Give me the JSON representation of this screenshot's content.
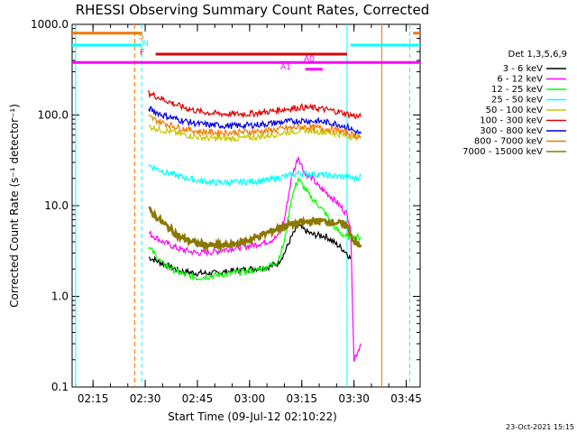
{
  "chart_data": {
    "type": "line",
    "title": "RHESSI Observing Summary Count Rates, Corrected",
    "xlabel": "Start Time (09-Jul-12 02:10:22)",
    "ylabel": "Corrected Count Rate (s⁻¹ detector⁻¹)",
    "yscale": "log",
    "ylim": [
      0.1,
      1000
    ],
    "xlim": [
      "02:09",
      "03:49"
    ],
    "x_ticks": [
      "02:15",
      "02:30",
      "02:45",
      "03:00",
      "03:15",
      "03:30",
      "03:45"
    ],
    "y_ticks": [
      "0.1",
      "1.0",
      "10.0",
      "100.0",
      "1000.0"
    ],
    "legend_title": "Det 1,3,5,6,9",
    "legend_position": "right",
    "timestamp": "23-Oct-2021 15:15",
    "flag_labels": {
      "S": "S",
      "N": "N",
      "F": "F",
      "A0": "A0",
      "A1": "A1"
    },
    "flags": [
      {
        "label": "S",
        "color": "#f07800",
        "level": 800,
        "segments": [
          [
            "02:09",
            "02:29"
          ],
          [
            "03:47",
            "03:49"
          ]
        ]
      },
      {
        "label": "N",
        "color": "#00ffff",
        "level": 590,
        "segments": [
          [
            "02:09",
            "02:29"
          ],
          [
            "03:29",
            "03:49"
          ]
        ]
      },
      {
        "label": "F",
        "color": "#e00000",
        "level": 470,
        "segments": [
          [
            "02:33",
            "03:28"
          ]
        ]
      },
      {
        "label": "A0",
        "color": "#ff00ff",
        "level": 380,
        "segments": [
          [
            "02:09",
            "03:49"
          ]
        ]
      },
      {
        "label": "A1",
        "color": "#ff00ff",
        "level": 320,
        "segments": [
          [
            "03:16",
            "03:21"
          ]
        ]
      }
    ],
    "vertical_markers": [
      {
        "time": "02:10",
        "color": "#00ffff",
        "style": "solid"
      },
      {
        "time": "02:27",
        "color": "#f07800",
        "style": "dashed"
      },
      {
        "time": "02:29",
        "color": "#00ffff",
        "style": "dashed"
      },
      {
        "time": "03:28",
        "color": "#00ffff",
        "style": "solid"
      },
      {
        "time": "03:38",
        "color": "#f07800",
        "style": "solid"
      },
      {
        "time": "03:46",
        "color": "#00ffff",
        "style": "dashed"
      }
    ],
    "series": [
      {
        "name": "3 - 6 keV",
        "color": "#000000",
        "x": [
          "02:31",
          "02:35",
          "02:40",
          "02:45",
          "02:50",
          "02:55",
          "03:00",
          "03:05",
          "03:08",
          "03:10",
          "03:12",
          "03:14",
          "03:16",
          "03:18",
          "03:20",
          "03:22",
          "03:24",
          "03:26",
          "03:28",
          "03:29"
        ],
        "y": [
          2.7,
          2.3,
          1.9,
          1.8,
          1.8,
          1.9,
          2.0,
          2.1,
          2.3,
          3.0,
          4.5,
          6.0,
          5.3,
          4.8,
          4.7,
          4.6,
          4.0,
          3.5,
          3.0,
          2.6
        ]
      },
      {
        "name": "6 - 12 keV",
        "color": "#ff00ff",
        "x": [
          "02:31",
          "02:35",
          "02:40",
          "02:45",
          "02:50",
          "02:55",
          "03:00",
          "03:05",
          "03:08",
          "03:10",
          "03:12",
          "03:14",
          "03:16",
          "03:18",
          "03:20",
          "03:22",
          "03:24",
          "03:26",
          "03:28",
          "03:29",
          "03:30",
          "03:32"
        ],
        "y": [
          5.0,
          4.0,
          3.3,
          3.0,
          3.1,
          3.4,
          3.6,
          4.0,
          4.5,
          7.0,
          20,
          35,
          22,
          20,
          16,
          14,
          12,
          10,
          8.0,
          6.0,
          0.2,
          0.3
        ]
      },
      {
        "name": "12 - 25 keV",
        "color": "#00ff00",
        "x": [
          "02:31",
          "02:35",
          "02:40",
          "02:45",
          "02:50",
          "02:55",
          "03:00",
          "03:05",
          "03:08",
          "03:10",
          "03:12",
          "03:14",
          "03:16",
          "03:18",
          "03:20",
          "03:22",
          "03:24",
          "03:26",
          "03:28",
          "03:30",
          "03:32"
        ],
        "y": [
          3.5,
          2.3,
          1.8,
          1.6,
          1.7,
          1.8,
          1.9,
          2.1,
          2.4,
          4.0,
          12,
          20,
          15,
          12,
          10,
          8.0,
          6.0,
          5.0,
          4.5,
          4.5,
          4.5
        ]
      },
      {
        "name": "25 - 50 keV",
        "color": "#00ffff",
        "x": [
          "02:31",
          "02:35",
          "02:40",
          "02:45",
          "02:50",
          "02:55",
          "03:00",
          "03:05",
          "03:10",
          "03:15",
          "03:20",
          "03:25",
          "03:28",
          "03:30",
          "03:32"
        ],
        "y": [
          28,
          24,
          21,
          19,
          18,
          18,
          18.5,
          19,
          21,
          23,
          22,
          21,
          21,
          20,
          21
        ]
      },
      {
        "name": "50 - 100 keV",
        "color": "#c8c800",
        "x": [
          "02:31",
          "02:35",
          "02:40",
          "02:45",
          "02:50",
          "02:55",
          "03:00",
          "03:05",
          "03:10",
          "03:15",
          "03:20",
          "03:25",
          "03:28",
          "03:30",
          "03:32"
        ],
        "y": [
          75,
          68,
          62,
          57,
          55,
          55,
          56,
          59,
          64,
          68,
          66,
          62,
          59,
          57,
          58
        ]
      },
      {
        "name": "100 - 300 keV",
        "color": "#e00000",
        "x": [
          "02:31",
          "02:35",
          "02:40",
          "02:45",
          "02:50",
          "02:55",
          "03:00",
          "03:05",
          "03:10",
          "03:15",
          "03:20",
          "03:25",
          "03:28",
          "03:30",
          "03:32"
        ],
        "y": [
          175,
          150,
          125,
          110,
          104,
          102,
          103,
          108,
          116,
          122,
          118,
          110,
          103,
          98,
          95
        ]
      },
      {
        "name": "300 - 800 keV",
        "color": "#0000e0",
        "x": [
          "02:31",
          "02:35",
          "02:40",
          "02:45",
          "02:50",
          "02:55",
          "03:00",
          "03:05",
          "03:10",
          "03:15",
          "03:20",
          "03:25",
          "03:28",
          "03:30",
          "03:32"
        ],
        "y": [
          118,
          100,
          88,
          80,
          77,
          76,
          77,
          80,
          84,
          87,
          85,
          80,
          74,
          67,
          62
        ]
      },
      {
        "name": "800 - 7000 keV",
        "color": "#f07800",
        "x": [
          "02:31",
          "02:35",
          "02:40",
          "02:45",
          "02:50",
          "02:55",
          "03:00",
          "03:05",
          "03:10",
          "03:15",
          "03:20",
          "03:25",
          "03:28",
          "03:30",
          "03:32"
        ],
        "y": [
          95,
          82,
          72,
          66,
          64,
          64,
          65,
          67,
          71,
          74,
          72,
          68,
          64,
          60,
          57
        ]
      },
      {
        "name": "7000 - 15000 keV",
        "color": "#8c7800",
        "x": [
          "02:31",
          "02:35",
          "02:40",
          "02:45",
          "02:50",
          "02:55",
          "03:00",
          "03:05",
          "03:10",
          "03:15",
          "03:20",
          "03:25",
          "03:28",
          "03:30",
          "03:32"
        ],
        "y": [
          9.0,
          6.5,
          4.5,
          3.8,
          3.6,
          3.7,
          4.2,
          5.0,
          6.0,
          6.5,
          6.8,
          6.5,
          6.0,
          4.0,
          3.5
        ]
      }
    ]
  }
}
